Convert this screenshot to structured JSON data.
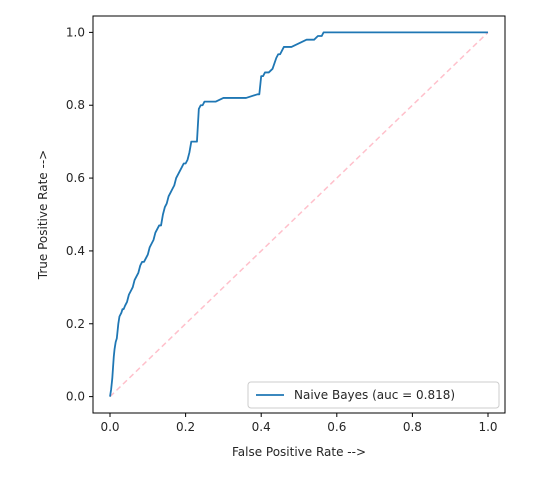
{
  "chart_data": {
    "type": "line",
    "title": "",
    "xlabel": "False Positive Rate -->",
    "ylabel": "True Positive Rate -->",
    "xlim": [
      -0.045,
      1.045
    ],
    "ylim": [
      -0.045,
      1.045
    ],
    "xticks": [
      0.0,
      0.2,
      0.4,
      0.6,
      0.8,
      1.0
    ],
    "yticks": [
      0.0,
      0.2,
      0.4,
      0.6,
      0.8,
      1.0
    ],
    "xtick_labels": [
      "0.0",
      "0.2",
      "0.4",
      "0.6",
      "0.8",
      "1.0"
    ],
    "ytick_labels": [
      "0.0",
      "0.2",
      "0.4",
      "0.6",
      "0.8",
      "1.0"
    ],
    "grid": false,
    "legend_placement": "lower-right",
    "series": [
      {
        "name": "Naive Bayes (auc = 0.818)",
        "style": "solid",
        "color": "#1f77b4",
        "x": [
          0.0,
          0.003,
          0.006,
          0.008,
          0.01,
          0.012,
          0.015,
          0.018,
          0.02,
          0.022,
          0.025,
          0.03,
          0.033,
          0.036,
          0.04,
          0.045,
          0.05,
          0.055,
          0.06,
          0.065,
          0.07,
          0.075,
          0.08,
          0.085,
          0.09,
          0.095,
          0.1,
          0.105,
          0.11,
          0.115,
          0.12,
          0.125,
          0.13,
          0.135,
          0.14,
          0.145,
          0.15,
          0.155,
          0.16,
          0.165,
          0.17,
          0.175,
          0.18,
          0.185,
          0.19,
          0.195,
          0.2,
          0.205,
          0.21,
          0.215,
          0.22,
          0.225,
          0.23,
          0.235,
          0.24,
          0.245,
          0.25,
          0.26,
          0.28,
          0.3,
          0.33,
          0.36,
          0.39,
          0.395,
          0.4,
          0.405,
          0.41,
          0.42,
          0.43,
          0.44,
          0.445,
          0.45,
          0.46,
          0.48,
          0.5,
          0.52,
          0.54,
          0.55,
          0.56,
          0.565,
          0.6,
          0.7,
          0.8,
          0.9,
          0.92,
          0.95,
          1.0
        ],
        "y": [
          0.0,
          0.02,
          0.05,
          0.08,
          0.11,
          0.13,
          0.15,
          0.16,
          0.18,
          0.2,
          0.22,
          0.23,
          0.24,
          0.24,
          0.25,
          0.26,
          0.28,
          0.29,
          0.3,
          0.32,
          0.33,
          0.34,
          0.36,
          0.37,
          0.37,
          0.38,
          0.39,
          0.41,
          0.42,
          0.43,
          0.45,
          0.46,
          0.47,
          0.47,
          0.5,
          0.52,
          0.53,
          0.55,
          0.56,
          0.57,
          0.58,
          0.6,
          0.61,
          0.62,
          0.63,
          0.64,
          0.64,
          0.65,
          0.67,
          0.7,
          0.7,
          0.7,
          0.7,
          0.79,
          0.8,
          0.8,
          0.81,
          0.81,
          0.81,
          0.82,
          0.82,
          0.82,
          0.83,
          0.83,
          0.88,
          0.88,
          0.89,
          0.89,
          0.9,
          0.93,
          0.94,
          0.94,
          0.96,
          0.96,
          0.97,
          0.98,
          0.98,
          0.99,
          0.99,
          1.0,
          1.0,
          1.0,
          1.0,
          1.0,
          1.0,
          1.0,
          1.0
        ]
      },
      {
        "name": "",
        "style": "dashed",
        "color": "#ffc0cb",
        "x": [
          0.0,
          1.0
        ],
        "y": [
          0.0,
          1.0
        ]
      }
    ]
  }
}
